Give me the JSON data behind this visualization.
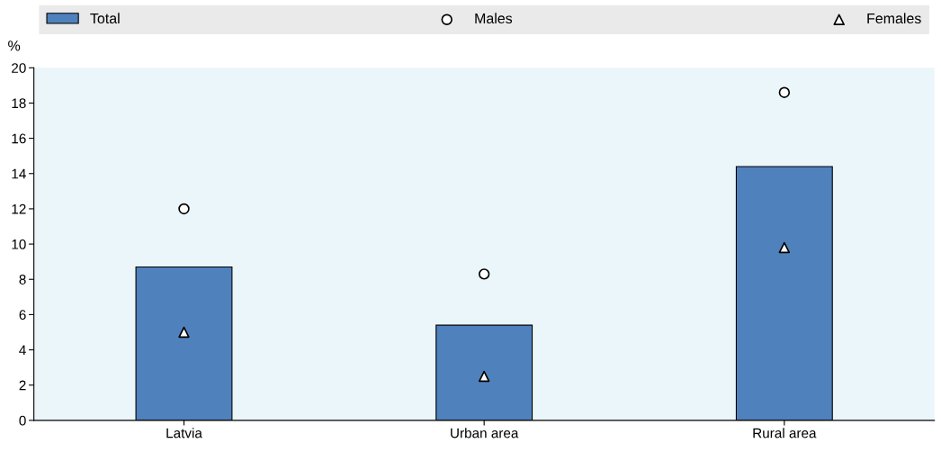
{
  "chart_data": {
    "type": "bar",
    "ylabel": "%",
    "categories": [
      "Latvia",
      "Urban area",
      "Rural area"
    ],
    "series": [
      {
        "name": "Total",
        "color": "#4f81bd",
        "values": [
          8.7,
          5.4,
          14.4
        ]
      },
      {
        "name": "Males",
        "type": "scatter",
        "marker": "circle",
        "color": "#ffffff",
        "values": [
          12.0,
          8.3,
          18.6
        ]
      },
      {
        "name": "Females",
        "type": "scatter",
        "marker": "triangle",
        "color": "#ffffff",
        "values": [
          5.0,
          2.5,
          9.8
        ]
      }
    ],
    "ylim": [
      0,
      20
    ],
    "yticks": [
      0,
      2,
      4,
      6,
      8,
      10,
      12,
      14,
      16,
      18,
      20
    ],
    "grid": false,
    "legend": "top"
  }
}
